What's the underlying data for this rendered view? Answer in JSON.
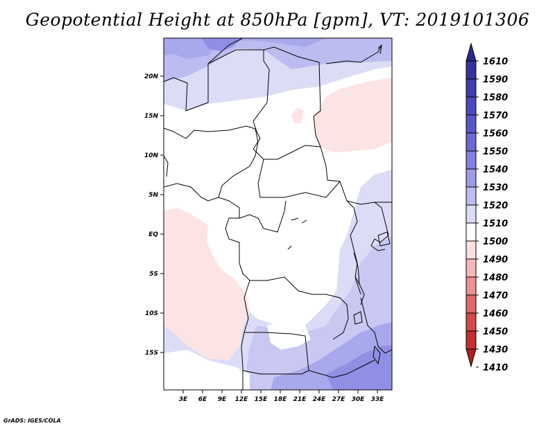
{
  "title": "Geopotential Height at 850hPa [gpm], VT: 2019101306",
  "credit": "GrADS: IGES/COLA",
  "map": {
    "lat_labels": [
      "20N",
      "15N",
      "10N",
      "5N",
      "EQ",
      "5S",
      "10S",
      "15S"
    ],
    "lon_labels": [
      "3E",
      "6E",
      "9E",
      "12E",
      "15E",
      "18E",
      "21E",
      "24E",
      "27E",
      "30E",
      "33E"
    ]
  },
  "colorbar": {
    "levels": [
      "1610",
      "1590",
      "1580",
      "1570",
      "1560",
      "1550",
      "1540",
      "1530",
      "1520",
      "1510",
      "1500",
      "1490",
      "1480",
      "1470",
      "1460",
      "1450",
      "1430",
      "1410"
    ],
    "colors": [
      "#2a2a8c",
      "#3333a0",
      "#3d3db2",
      "#4a4ac0",
      "#5757cc",
      "#6a6ad6",
      "#8080e0",
      "#9c9ce8",
      "#bcbcf0",
      "#dcdcf6",
      "#ffffff",
      "#fbe0e0",
      "#f5b8b8",
      "#ec9090",
      "#e06868",
      "#d44848",
      "#c43030",
      "#b02020"
    ],
    "unit": "gpm"
  }
}
